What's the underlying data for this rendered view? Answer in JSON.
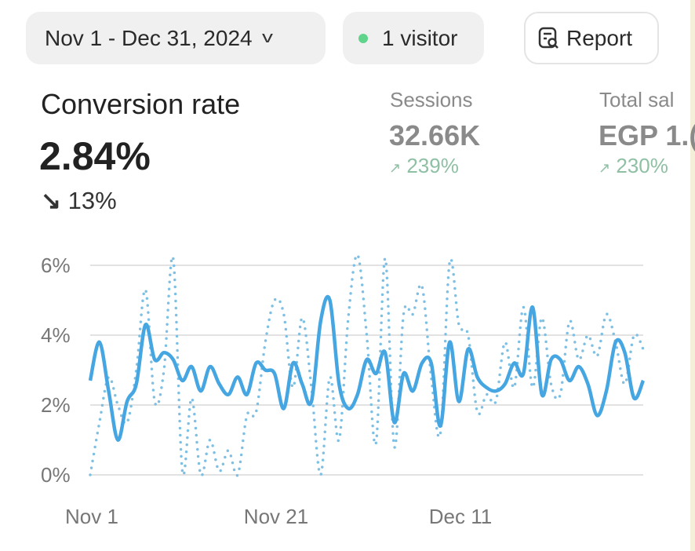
{
  "header": {
    "date_range": "Nov 1 - Dec 31, 2024",
    "visitors": "1 visitor",
    "visitor_status_color": "#5fd48a",
    "report_label": "Report",
    "report_icon": "report-search-icon"
  },
  "metric": {
    "title": "Conversion rate",
    "value": "2.84%",
    "change_arrow": "↘",
    "change": "13%",
    "direction": "down"
  },
  "secondary_metrics": [
    {
      "label": "Sessions",
      "value": "32.66K",
      "change_arrow": "↗",
      "change": "239%"
    },
    {
      "label": "Total sal",
      "value": "EGP 1.(",
      "change_arrow": "↗",
      "change": "230%"
    }
  ],
  "colors": {
    "primary_line": "#46a6e2",
    "comparison_line": "#7ec0e4",
    "positive_change": "#8fc0a4"
  },
  "chart_data": {
    "type": "line",
    "x_start": "2024-11-01",
    "x_end": "2024-12-31",
    "x_ticks": [
      "Nov 1",
      "Nov 21",
      "Dec 11"
    ],
    "y_ticks": [
      "0%",
      "2%",
      "4%",
      "6%"
    ],
    "ylim": [
      0,
      6
    ],
    "grid": true,
    "series": [
      {
        "style": "solid",
        "values": [
          2.7,
          3.8,
          2.4,
          1.0,
          2.1,
          2.6,
          4.3,
          3.3,
          3.5,
          3.3,
          2.7,
          3.1,
          2.4,
          3.1,
          2.6,
          2.3,
          2.8,
          2.3,
          3.2,
          3.0,
          2.9,
          1.9,
          3.2,
          2.6,
          2.1,
          4.4,
          5.0,
          2.6,
          1.9,
          2.3,
          3.3,
          2.9,
          3.5,
          1.5,
          2.9,
          2.4,
          3.2,
          3.2,
          1.4,
          3.8,
          2.1,
          3.6,
          2.8,
          2.5,
          2.4,
          2.6,
          3.2,
          2.9,
          4.8,
          2.3,
          3.3,
          3.3,
          2.7,
          3.1,
          2.6,
          1.7,
          2.4,
          3.8,
          3.5,
          2.2,
          2.7
        ]
      },
      {
        "style": "dotted",
        "values": [
          0,
          1.5,
          2.8,
          2.0,
          1.5,
          3.0,
          5.3,
          2.1,
          3.0,
          6.2,
          0.1,
          2.2,
          0,
          1.0,
          0.1,
          0.7,
          0,
          1.7,
          1.8,
          3.8,
          5.0,
          4.6,
          2.5,
          4.5,
          2.5,
          0,
          2.8,
          1.0,
          4.5,
          6.3,
          4.0,
          0.9,
          6.2,
          0.8,
          4.6,
          4.6,
          5.4,
          2.8,
          1.2,
          6.1,
          4.3,
          4.0,
          1.8,
          2.3,
          2.1,
          3.8,
          2.5,
          4.8,
          2.5,
          4.5,
          2.6,
          2.3,
          4.4,
          3.3,
          4.0,
          3.4,
          4.6,
          3.8,
          2.6,
          4.0,
          3.6
        ]
      }
    ]
  }
}
